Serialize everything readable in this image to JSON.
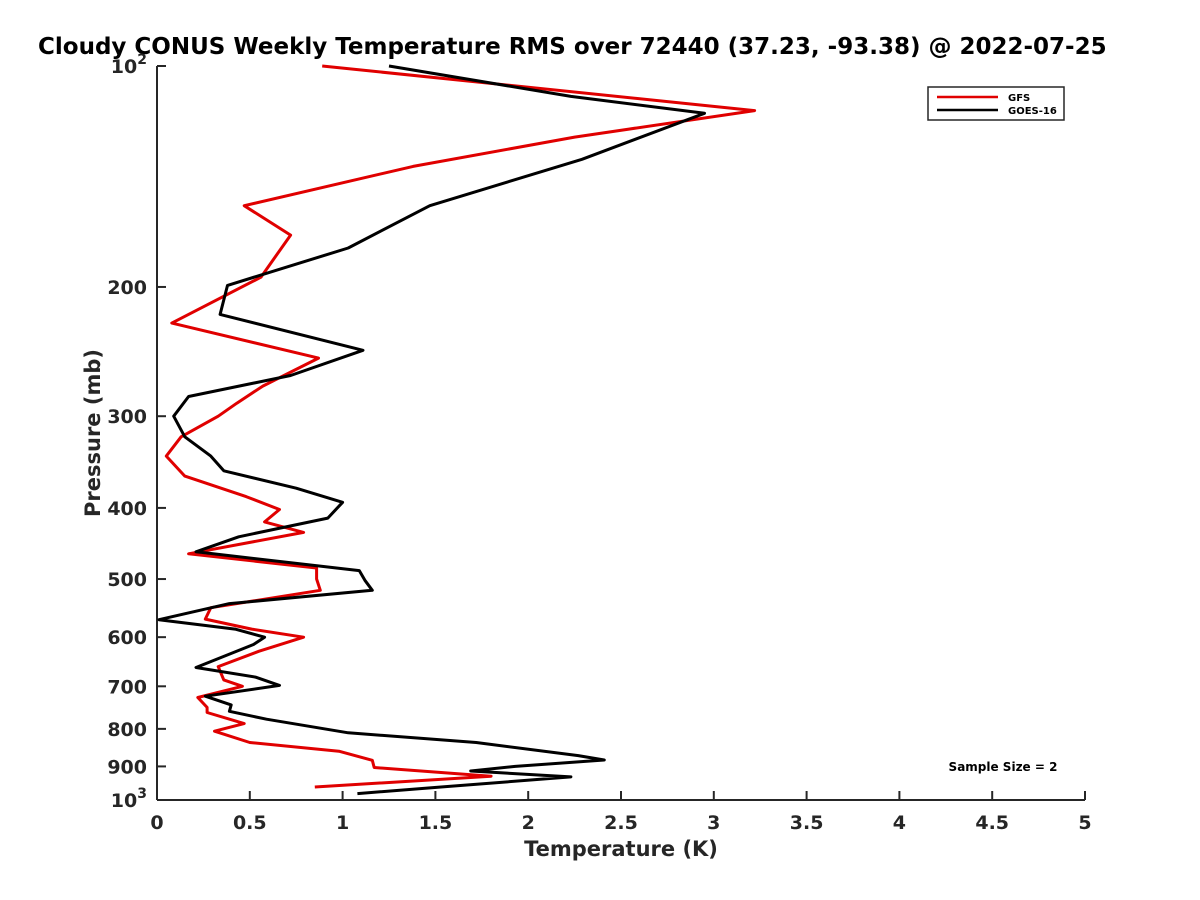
{
  "chart_data": {
    "type": "line",
    "title": "Cloudy CONUS Weekly Temperature RMS over 72440 (37.23, -93.38) @ 2022-07-25",
    "xlabel": "Temperature (K)",
    "ylabel": "Pressure (mb)",
    "xlim": [
      0,
      5
    ],
    "ylim": [
      100,
      1000
    ],
    "y_scale": "log",
    "y_reversed": true,
    "xticks": [
      0,
      0.5,
      1,
      1.5,
      2,
      2.5,
      3,
      3.5,
      4,
      4.5,
      5
    ],
    "xtick_labels": [
      "0",
      "0.5",
      "1",
      "1.5",
      "2",
      "2.5",
      "3",
      "3.5",
      "4",
      "4.5",
      "5"
    ],
    "yticks": [
      100,
      200,
      300,
      400,
      500,
      600,
      700,
      800,
      900,
      1000
    ],
    "ytick_labels": [
      {
        "base": "10",
        "exp": "2"
      },
      {
        "base": "200",
        "exp": ""
      },
      {
        "base": "300",
        "exp": ""
      },
      {
        "base": "400",
        "exp": ""
      },
      {
        "base": "500",
        "exp": ""
      },
      {
        "base": "600",
        "exp": ""
      },
      {
        "base": "700",
        "exp": ""
      },
      {
        "base": "800",
        "exp": ""
      },
      {
        "base": "900",
        "exp": ""
      },
      {
        "base": "10",
        "exp": "3"
      }
    ],
    "legend_position": "top-right",
    "annotation": "Sample Size = 2",
    "series": [
      {
        "name": "GFS",
        "color": "#e00000",
        "points": [
          [
            0.89,
            100
          ],
          [
            3.22,
            115
          ],
          [
            2.25,
            125
          ],
          [
            1.38,
            137
          ],
          [
            0.47,
            155
          ],
          [
            0.72,
            170
          ],
          [
            0.56,
            194
          ],
          [
            0.08,
            224
          ],
          [
            0.87,
            250
          ],
          [
            0.57,
            273
          ],
          [
            0.43,
            288
          ],
          [
            0.33,
            300
          ],
          [
            0.13,
            320
          ],
          [
            0.05,
            340
          ],
          [
            0.15,
            362
          ],
          [
            0.48,
            386
          ],
          [
            0.66,
            402
          ],
          [
            0.58,
            418
          ],
          [
            0.79,
            432
          ],
          [
            0.17,
            462
          ],
          [
            0.86,
            483
          ],
          [
            0.86,
            500
          ],
          [
            0.88,
            518
          ],
          [
            0.29,
            547
          ],
          [
            0.26,
            567
          ],
          [
            0.51,
            585
          ],
          [
            0.79,
            600
          ],
          [
            0.55,
            627
          ],
          [
            0.33,
            658
          ],
          [
            0.36,
            686
          ],
          [
            0.46,
            700
          ],
          [
            0.22,
            725
          ],
          [
            0.27,
            748
          ],
          [
            0.27,
            760
          ],
          [
            0.47,
            787
          ],
          [
            0.31,
            806
          ],
          [
            0.5,
            835
          ],
          [
            0.98,
            858
          ],
          [
            1.16,
            883
          ],
          [
            1.17,
            903
          ],
          [
            1.8,
            928
          ],
          [
            0.85,
            960
          ]
        ]
      },
      {
        "name": "GOES-16",
        "color": "#000000",
        "points": [
          [
            1.25,
            100
          ],
          [
            2.23,
            110
          ],
          [
            2.95,
            116
          ],
          [
            2.29,
            134
          ],
          [
            1.47,
            155
          ],
          [
            1.03,
            177
          ],
          [
            0.38,
            199
          ],
          [
            0.34,
            218
          ],
          [
            1.11,
            244
          ],
          [
            0.72,
            264
          ],
          [
            0.17,
            282
          ],
          [
            0.09,
            300
          ],
          [
            0.15,
            320
          ],
          [
            0.29,
            340
          ],
          [
            0.36,
            356
          ],
          [
            0.75,
            376
          ],
          [
            1.0,
            393
          ],
          [
            0.92,
            413
          ],
          [
            0.44,
            438
          ],
          [
            0.21,
            459
          ],
          [
            1.09,
            487
          ],
          [
            1.12,
            502
          ],
          [
            1.16,
            518
          ],
          [
            0.39,
            540
          ],
          [
            0.01,
            568
          ],
          [
            0.42,
            585
          ],
          [
            0.58,
            600
          ],
          [
            0.52,
            614
          ],
          [
            0.21,
            660
          ],
          [
            0.53,
            680
          ],
          [
            0.66,
            698
          ],
          [
            0.26,
            722
          ],
          [
            0.4,
            742
          ],
          [
            0.39,
            757
          ],
          [
            0.59,
            776
          ],
          [
            1.03,
            810
          ],
          [
            1.72,
            835
          ],
          [
            2.27,
            870
          ],
          [
            2.41,
            882
          ],
          [
            1.93,
            900
          ],
          [
            1.69,
            913
          ],
          [
            2.23,
            930
          ],
          [
            1.53,
            960
          ],
          [
            1.08,
            980
          ]
        ]
      }
    ]
  }
}
